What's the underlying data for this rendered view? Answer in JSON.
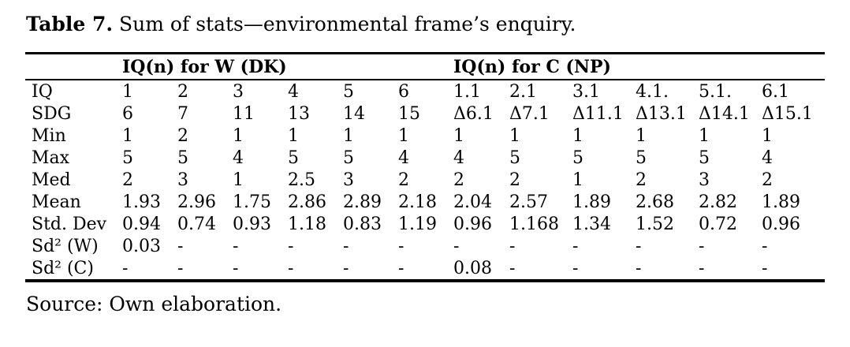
{
  "caption": {
    "label": "Table 7.",
    "text": " Sum of stats—environmental frame’s enquiry."
  },
  "table": {
    "group_headers": [
      {
        "label": "IQ(n) for W (DK)",
        "span": 6
      },
      {
        "label": "IQ(n) for C (NP)",
        "span": 6
      }
    ],
    "rows": [
      {
        "label": "IQ",
        "values": [
          "1",
          "2",
          "3",
          "4",
          "5",
          "6",
          "1.1",
          "2.1",
          "3.1",
          "4.1.",
          "5.1.",
          "6.1"
        ]
      },
      {
        "label": "SDG",
        "values": [
          "6",
          "7",
          "11",
          "13",
          "14",
          "15",
          "Δ6.1",
          "Δ7.1",
          "Δ11.1",
          "Δ13.1",
          "Δ14.1",
          "Δ15.1"
        ]
      },
      {
        "label": "Min",
        "values": [
          "1",
          "2",
          "1",
          "1",
          "1",
          "1",
          "1",
          "1",
          "1",
          "1",
          "1",
          "1"
        ]
      },
      {
        "label": "Max",
        "values": [
          "5",
          "5",
          "4",
          "5",
          "5",
          "4",
          "4",
          "5",
          "5",
          "5",
          "5",
          "4"
        ]
      },
      {
        "label": "Med",
        "values": [
          "2",
          "3",
          "1",
          "2.5",
          "3",
          "2",
          "2",
          "2",
          "1",
          "2",
          "3",
          "2"
        ]
      },
      {
        "label": "Mean",
        "values": [
          "1.93",
          "2.96",
          "1.75",
          "2.86",
          "2.89",
          "2.18",
          "2.04",
          "2.57",
          "1.89",
          "2.68",
          "2.82",
          "1.89"
        ]
      },
      {
        "label": "Std. Dev",
        "values": [
          "0.94",
          "0.74",
          "0.93",
          "1.18",
          "0.83",
          "1.19",
          "0.96",
          "1.168",
          "1.34",
          "1.52",
          "0.72",
          "0.96"
        ]
      },
      {
        "label": "Sd² (W)",
        "values": [
          "0.03",
          "-",
          "-",
          "-",
          "-",
          "-",
          "-",
          "-",
          "-",
          "-",
          "-",
          "-"
        ]
      },
      {
        "label": "Sd² (C)",
        "values": [
          "-",
          "-",
          "-",
          "-",
          "-",
          "-",
          "0.08",
          "-",
          "-",
          "-",
          "-",
          "-"
        ]
      }
    ]
  },
  "source": "Source: Own elaboration.",
  "colors": {
    "text": "#000000",
    "background": "#ffffff",
    "rule": "#000000"
  }
}
